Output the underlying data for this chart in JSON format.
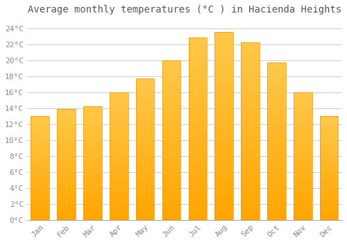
{
  "months": [
    "Jan",
    "Feb",
    "Mar",
    "Apr",
    "May",
    "Jun",
    "Jul",
    "Aug",
    "Sep",
    "Oct",
    "Nov",
    "Dec"
  ],
  "temperatures": [
    13.0,
    13.9,
    14.2,
    16.0,
    17.7,
    20.0,
    22.8,
    23.5,
    22.2,
    19.7,
    16.0,
    13.0
  ],
  "bar_color_top": "#FFB300",
  "bar_color_bottom": "#FFA500",
  "bar_color_gradient_mid": "#FFC84A",
  "background_color": "#FFFFFF",
  "grid_color": "#CCCCCC",
  "title": "Average monthly temperatures (°C ) in Hacienda Heights",
  "title_fontsize": 10,
  "tick_fontsize": 8,
  "ylim": [
    0,
    25
  ],
  "ytick_interval": 2,
  "tick_label_color": "#888888",
  "title_color": "#555555",
  "font_family": "monospace",
  "bar_width": 0.7,
  "axisline_color": "#AAAAAA"
}
